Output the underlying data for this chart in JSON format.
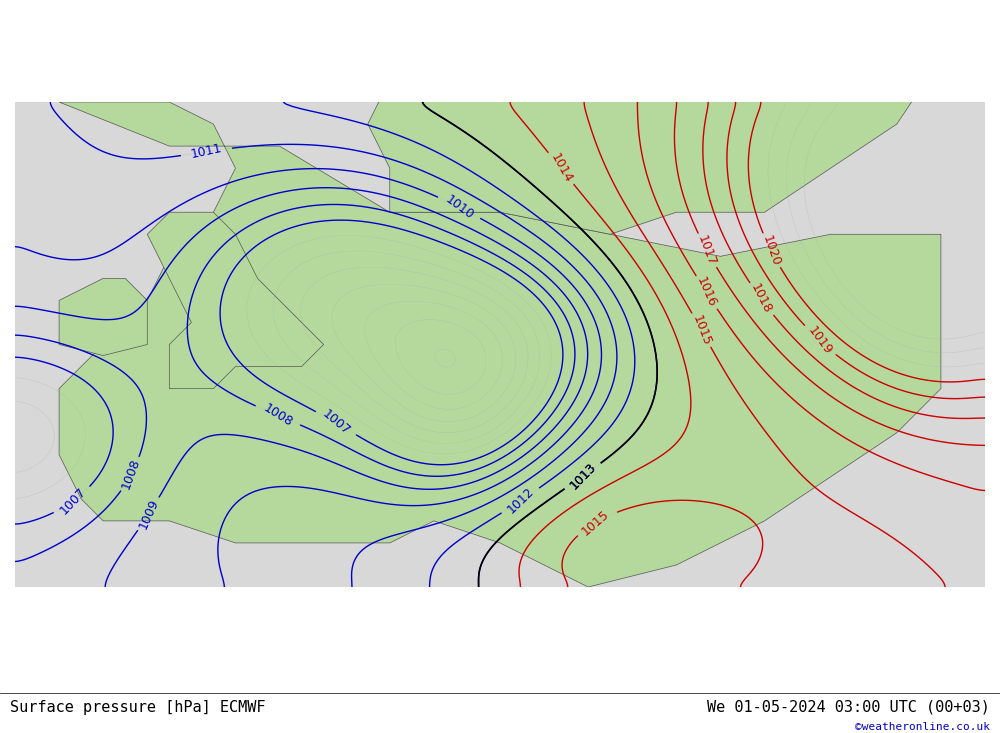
{
  "title_left": "Surface pressure [hPa] ECMWF",
  "title_right": "We 01-05-2024 03:00 UTC (00+03)",
  "watermark": "©weatheronline.co.uk",
  "background_land_green": "#b5d99c",
  "background_sea_light": "#e8e8e8",
  "background_color": "#d0e8f0",
  "isobar_black_color": "#000000",
  "isobar_blue_color": "#0000cc",
  "isobar_red_color": "#cc0000",
  "coastline_color": "#555555",
  "border_color": "#555555",
  "label_fontsize": 9,
  "title_fontsize": 11,
  "figsize": [
    10.0,
    7.33
  ],
  "dpi": 100
}
